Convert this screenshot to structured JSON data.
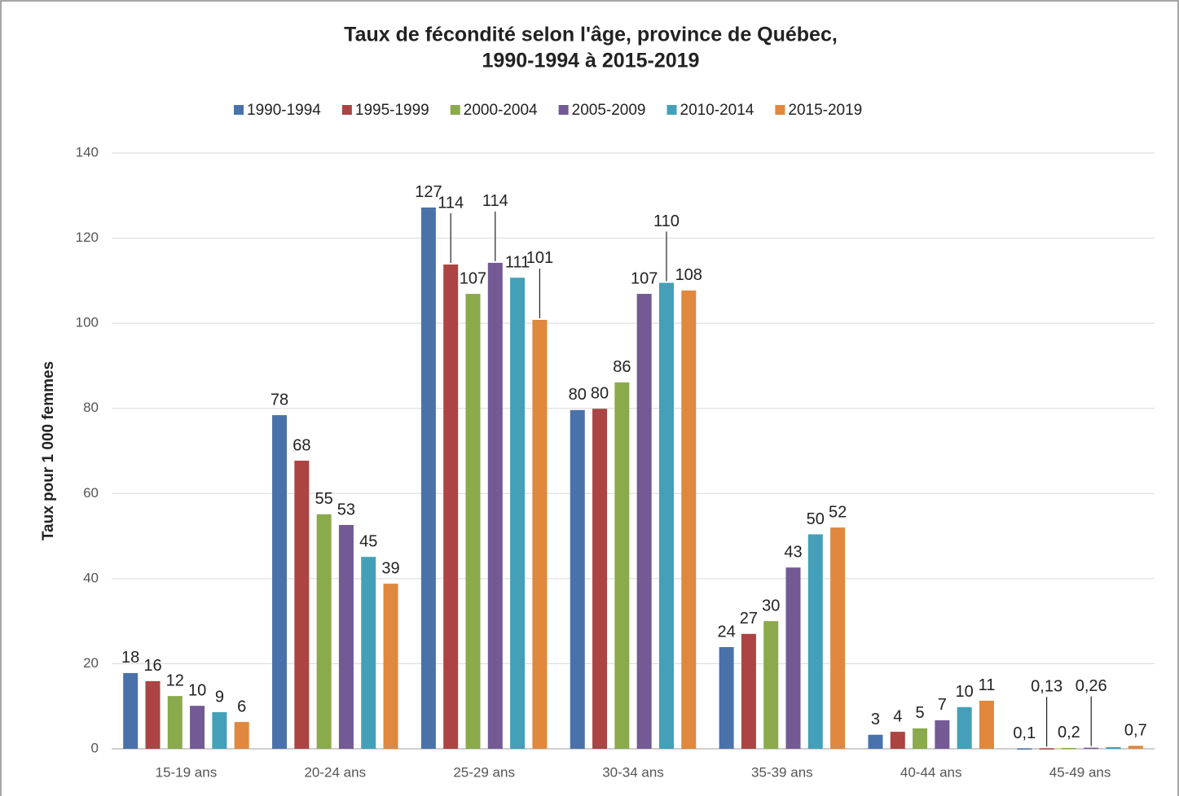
{
  "chart_data": {
    "type": "bar",
    "title": [
      "Taux de fécondité selon l'âge, province de Québec,",
      "1990-1994  à 2015-2019"
    ],
    "y_label": "Taux pour 1 000 femmes",
    "categories": [
      "15-19 ans",
      "20-24 ans",
      "25-29 ans",
      "30-34 ans",
      "35-39 ans",
      "40-44 ans",
      "45-49 ans"
    ],
    "series": [
      {
        "name": "1990-1994",
        "color": "#4a72aa",
        "values": [
          17.8,
          78.4,
          127.2,
          79.6,
          23.9,
          3.3,
          0.1
        ],
        "value_labels": [
          "18",
          "78",
          "127",
          "80",
          "24",
          "3",
          "0,1"
        ]
      },
      {
        "name": "1995-1999",
        "color": "#ab4442",
        "values": [
          15.9,
          67.7,
          113.8,
          79.9,
          27.0,
          4.0,
          0.13
        ],
        "value_labels": [
          "16",
          "68",
          "114",
          "80",
          "27",
          "4",
          "0,13"
        ]
      },
      {
        "name": "2000-2004",
        "color": "#8aaa4c",
        "values": [
          12.4,
          55.1,
          106.9,
          86.1,
          30.0,
          4.8,
          0.2
        ],
        "value_labels": [
          "12",
          "55",
          "107",
          "86",
          "30",
          "5",
          "0,2"
        ]
      },
      {
        "name": "2005-2009",
        "color": "#735a95",
        "values": [
          10.1,
          52.6,
          114.2,
          106.9,
          42.6,
          6.7,
          0.26
        ],
        "value_labels": [
          "10",
          "53",
          "114",
          "107",
          "43",
          "7",
          "0,26"
        ]
      },
      {
        "name": "2010-2014",
        "color": "#43a0b8",
        "values": [
          8.6,
          45.1,
          110.7,
          109.5,
          50.4,
          9.8,
          0.4
        ],
        "value_labels": [
          "9",
          "45",
          "111",
          "110",
          "50",
          "10",
          null
        ]
      },
      {
        "name": "2015-2019",
        "color": "#e0883e",
        "values": [
          6.3,
          38.8,
          100.8,
          107.7,
          52.0,
          11.3,
          0.7
        ],
        "value_labels": [
          "6",
          "39",
          "101",
          "108",
          "52",
          "11",
          "0,7"
        ]
      }
    ],
    "ylim": [
      0,
      140
    ],
    "yticks": [
      0,
      20,
      40,
      60,
      80,
      100,
      120,
      140
    ],
    "grid": true,
    "legend": "top"
  }
}
